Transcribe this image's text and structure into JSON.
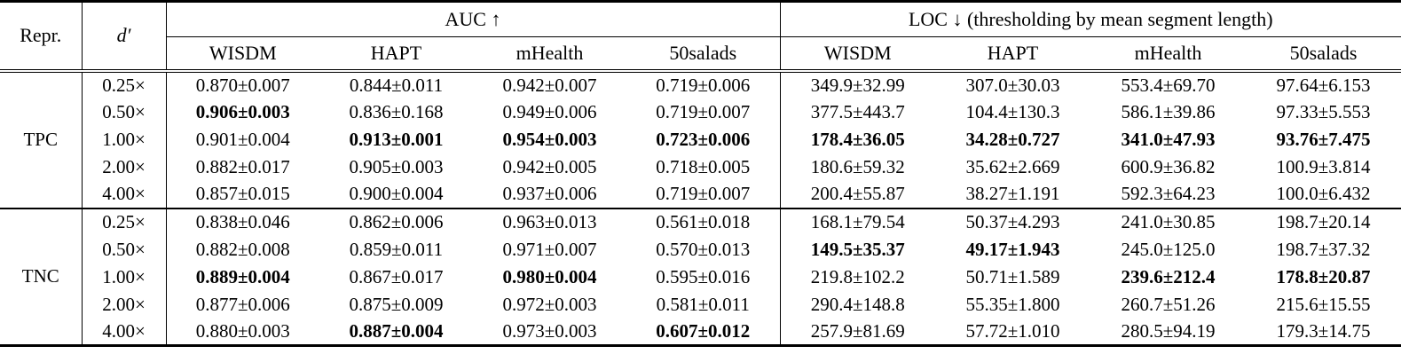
{
  "table": {
    "header": {
      "repr": "Repr.",
      "dprime": "d′"
    },
    "groups": [
      {
        "label": "AUC ↑",
        "columns": [
          "WISDM",
          "HAPT",
          "mHealth",
          "50salads"
        ]
      },
      {
        "label": "LOC ↓ (thresholding by mean segment length)",
        "columns": [
          "WISDM",
          "HAPT",
          "mHealth",
          "50salads"
        ]
      }
    ],
    "sections": [
      {
        "repr": "TPC",
        "rows": [
          {
            "dprime": "0.25×",
            "auc": [
              {
                "text": "0.870±0.007",
                "bold": false
              },
              {
                "text": "0.844±0.011",
                "bold": false
              },
              {
                "text": "0.942±0.007",
                "bold": false
              },
              {
                "text": "0.719±0.006",
                "bold": false
              }
            ],
            "loc": [
              {
                "text": "349.9±32.99",
                "bold": false
              },
              {
                "text": "307.0±30.03",
                "bold": false
              },
              {
                "text": "553.4±69.70",
                "bold": false
              },
              {
                "text": "97.64±6.153",
                "bold": false
              }
            ]
          },
          {
            "dprime": "0.50×",
            "auc": [
              {
                "text": "0.906±0.003",
                "bold": true
              },
              {
                "text": "0.836±0.168",
                "bold": false
              },
              {
                "text": "0.949±0.006",
                "bold": false
              },
              {
                "text": "0.719±0.007",
                "bold": false
              }
            ],
            "loc": [
              {
                "text": "377.5±443.7",
                "bold": false
              },
              {
                "text": "104.4±130.3",
                "bold": false
              },
              {
                "text": "586.1±39.86",
                "bold": false
              },
              {
                "text": "97.33±5.553",
                "bold": false
              }
            ]
          },
          {
            "dprime": "1.00×",
            "auc": [
              {
                "text": "0.901±0.004",
                "bold": false
              },
              {
                "text": "0.913±0.001",
                "bold": true
              },
              {
                "text": "0.954±0.003",
                "bold": true
              },
              {
                "text": "0.723±0.006",
                "bold": true
              }
            ],
            "loc": [
              {
                "text": "178.4±36.05",
                "bold": true
              },
              {
                "text": "34.28±0.727",
                "bold": true
              },
              {
                "text": "341.0±47.93",
                "bold": true
              },
              {
                "text": "93.76±7.475",
                "bold": true
              }
            ]
          },
          {
            "dprime": "2.00×",
            "auc": [
              {
                "text": "0.882±0.017",
                "bold": false
              },
              {
                "text": "0.905±0.003",
                "bold": false
              },
              {
                "text": "0.942±0.005",
                "bold": false
              },
              {
                "text": "0.718±0.005",
                "bold": false
              }
            ],
            "loc": [
              {
                "text": "180.6±59.32",
                "bold": false
              },
              {
                "text": "35.62±2.669",
                "bold": false
              },
              {
                "text": "600.9±36.82",
                "bold": false
              },
              {
                "text": "100.9±3.814",
                "bold": false
              }
            ]
          },
          {
            "dprime": "4.00×",
            "auc": [
              {
                "text": "0.857±0.015",
                "bold": false
              },
              {
                "text": "0.900±0.004",
                "bold": false
              },
              {
                "text": "0.937±0.006",
                "bold": false
              },
              {
                "text": "0.719±0.007",
                "bold": false
              }
            ],
            "loc": [
              {
                "text": "200.4±55.87",
                "bold": false
              },
              {
                "text": "38.27±1.191",
                "bold": false
              },
              {
                "text": "592.3±64.23",
                "bold": false
              },
              {
                "text": "100.0±6.432",
                "bold": false
              }
            ]
          }
        ]
      },
      {
        "repr": "TNC",
        "rows": [
          {
            "dprime": "0.25×",
            "auc": [
              {
                "text": "0.838±0.046",
                "bold": false
              },
              {
                "text": "0.862±0.006",
                "bold": false
              },
              {
                "text": "0.963±0.013",
                "bold": false
              },
              {
                "text": "0.561±0.018",
                "bold": false
              }
            ],
            "loc": [
              {
                "text": "168.1±79.54",
                "bold": false
              },
              {
                "text": "50.37±4.293",
                "bold": false
              },
              {
                "text": "241.0±30.85",
                "bold": false
              },
              {
                "text": "198.7±20.14",
                "bold": false
              }
            ]
          },
          {
            "dprime": "0.50×",
            "auc": [
              {
                "text": "0.882±0.008",
                "bold": false
              },
              {
                "text": "0.859±0.011",
                "bold": false
              },
              {
                "text": "0.971±0.007",
                "bold": false
              },
              {
                "text": "0.570±0.013",
                "bold": false
              }
            ],
            "loc": [
              {
                "text": "149.5±35.37",
                "bold": true
              },
              {
                "text": "49.17±1.943",
                "bold": true
              },
              {
                "text": "245.0±125.0",
                "bold": false
              },
              {
                "text": "198.7±37.32",
                "bold": false
              }
            ]
          },
          {
            "dprime": "1.00×",
            "auc": [
              {
                "text": "0.889±0.004",
                "bold": true
              },
              {
                "text": "0.867±0.017",
                "bold": false
              },
              {
                "text": "0.980±0.004",
                "bold": true
              },
              {
                "text": "0.595±0.016",
                "bold": false
              }
            ],
            "loc": [
              {
                "text": "219.8±102.2",
                "bold": false
              },
              {
                "text": "50.71±1.589",
                "bold": false
              },
              {
                "text": "239.6±212.4",
                "bold": true
              },
              {
                "text": "178.8±20.87",
                "bold": true
              }
            ]
          },
          {
            "dprime": "2.00×",
            "auc": [
              {
                "text": "0.877±0.006",
                "bold": false
              },
              {
                "text": "0.875±0.009",
                "bold": false
              },
              {
                "text": "0.972±0.003",
                "bold": false
              },
              {
                "text": "0.581±0.011",
                "bold": false
              }
            ],
            "loc": [
              {
                "text": "290.4±148.8",
                "bold": false
              },
              {
                "text": "55.35±1.800",
                "bold": false
              },
              {
                "text": "260.7±51.26",
                "bold": false
              },
              {
                "text": "215.6±15.55",
                "bold": false
              }
            ]
          },
          {
            "dprime": "4.00×",
            "auc": [
              {
                "text": "0.880±0.003",
                "bold": false
              },
              {
                "text": "0.887±0.004",
                "bold": true
              },
              {
                "text": "0.973±0.003",
                "bold": false
              },
              {
                "text": "0.607±0.012",
                "bold": true
              }
            ],
            "loc": [
              {
                "text": "257.9±81.69",
                "bold": false
              },
              {
                "text": "57.72±1.010",
                "bold": false
              },
              {
                "text": "280.5±94.19",
                "bold": false
              },
              {
                "text": "179.3±14.75",
                "bold": false
              }
            ]
          }
        ]
      }
    ]
  }
}
